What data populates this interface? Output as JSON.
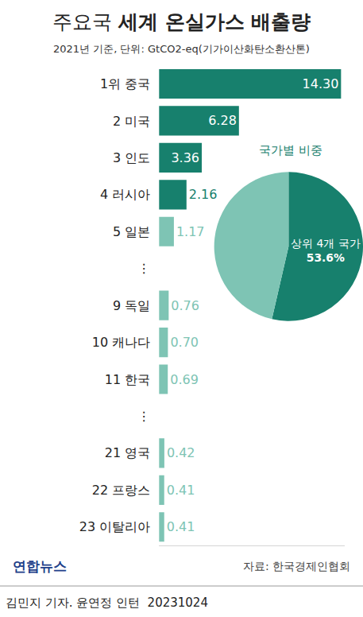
{
  "chart_data": [
    {
      "type": "bar",
      "title": "주요국 세계 온실가스 배출량",
      "subtitle": "2021년 기준, 단위: GtCO2-eq(기가이산화탄소환산톤)",
      "orientation": "horizontal",
      "categories": [
        "1위 중국",
        "2 미국",
        "3 인도",
        "4 러시아",
        "5 일본",
        "⋮",
        "9 독일",
        "10 캐나다",
        "11 한국",
        "⋮",
        "21 영국",
        "22 프랑스",
        "23 이탈리아"
      ],
      "values": [
        14.3,
        6.28,
        3.36,
        2.16,
        1.17,
        null,
        0.76,
        0.7,
        0.69,
        null,
        0.42,
        0.41,
        0.41
      ],
      "value_labels": [
        "14.30",
        "6.28",
        "3.36",
        "2.16",
        "1.17",
        null,
        "0.76",
        "0.70",
        "0.69",
        null,
        "0.42",
        "0.41",
        "0.41"
      ],
      "colors": [
        "#17806d",
        "#17806d",
        "#17806d",
        "#17806d",
        "#7ec4b4",
        null,
        "#7ec4b4",
        "#7ec4b4",
        "#7ec4b4",
        null,
        "#7ec4b4",
        "#7ec4b4",
        "#7ec4b4"
      ],
      "xlim": [
        0,
        14.6
      ],
      "xticks": [],
      "tick_labels": "y",
      "grid": false,
      "data_labels": true,
      "annotations": [
        "연합뉴스",
        "자료: 한국경제인협회",
        "김민지 기자. 윤연정 인턴  20231024"
      ]
    },
    {
      "type": "pie",
      "title": "국가별 비중",
      "categories": [
        "상위 4개 국가",
        null
      ],
      "values": [
        53.6,
        46.4
      ],
      "value_labels": [
        "53.6%",
        null
      ],
      "colors": [
        "#17806d",
        "#7ec4b4"
      ]
    }
  ]
}
